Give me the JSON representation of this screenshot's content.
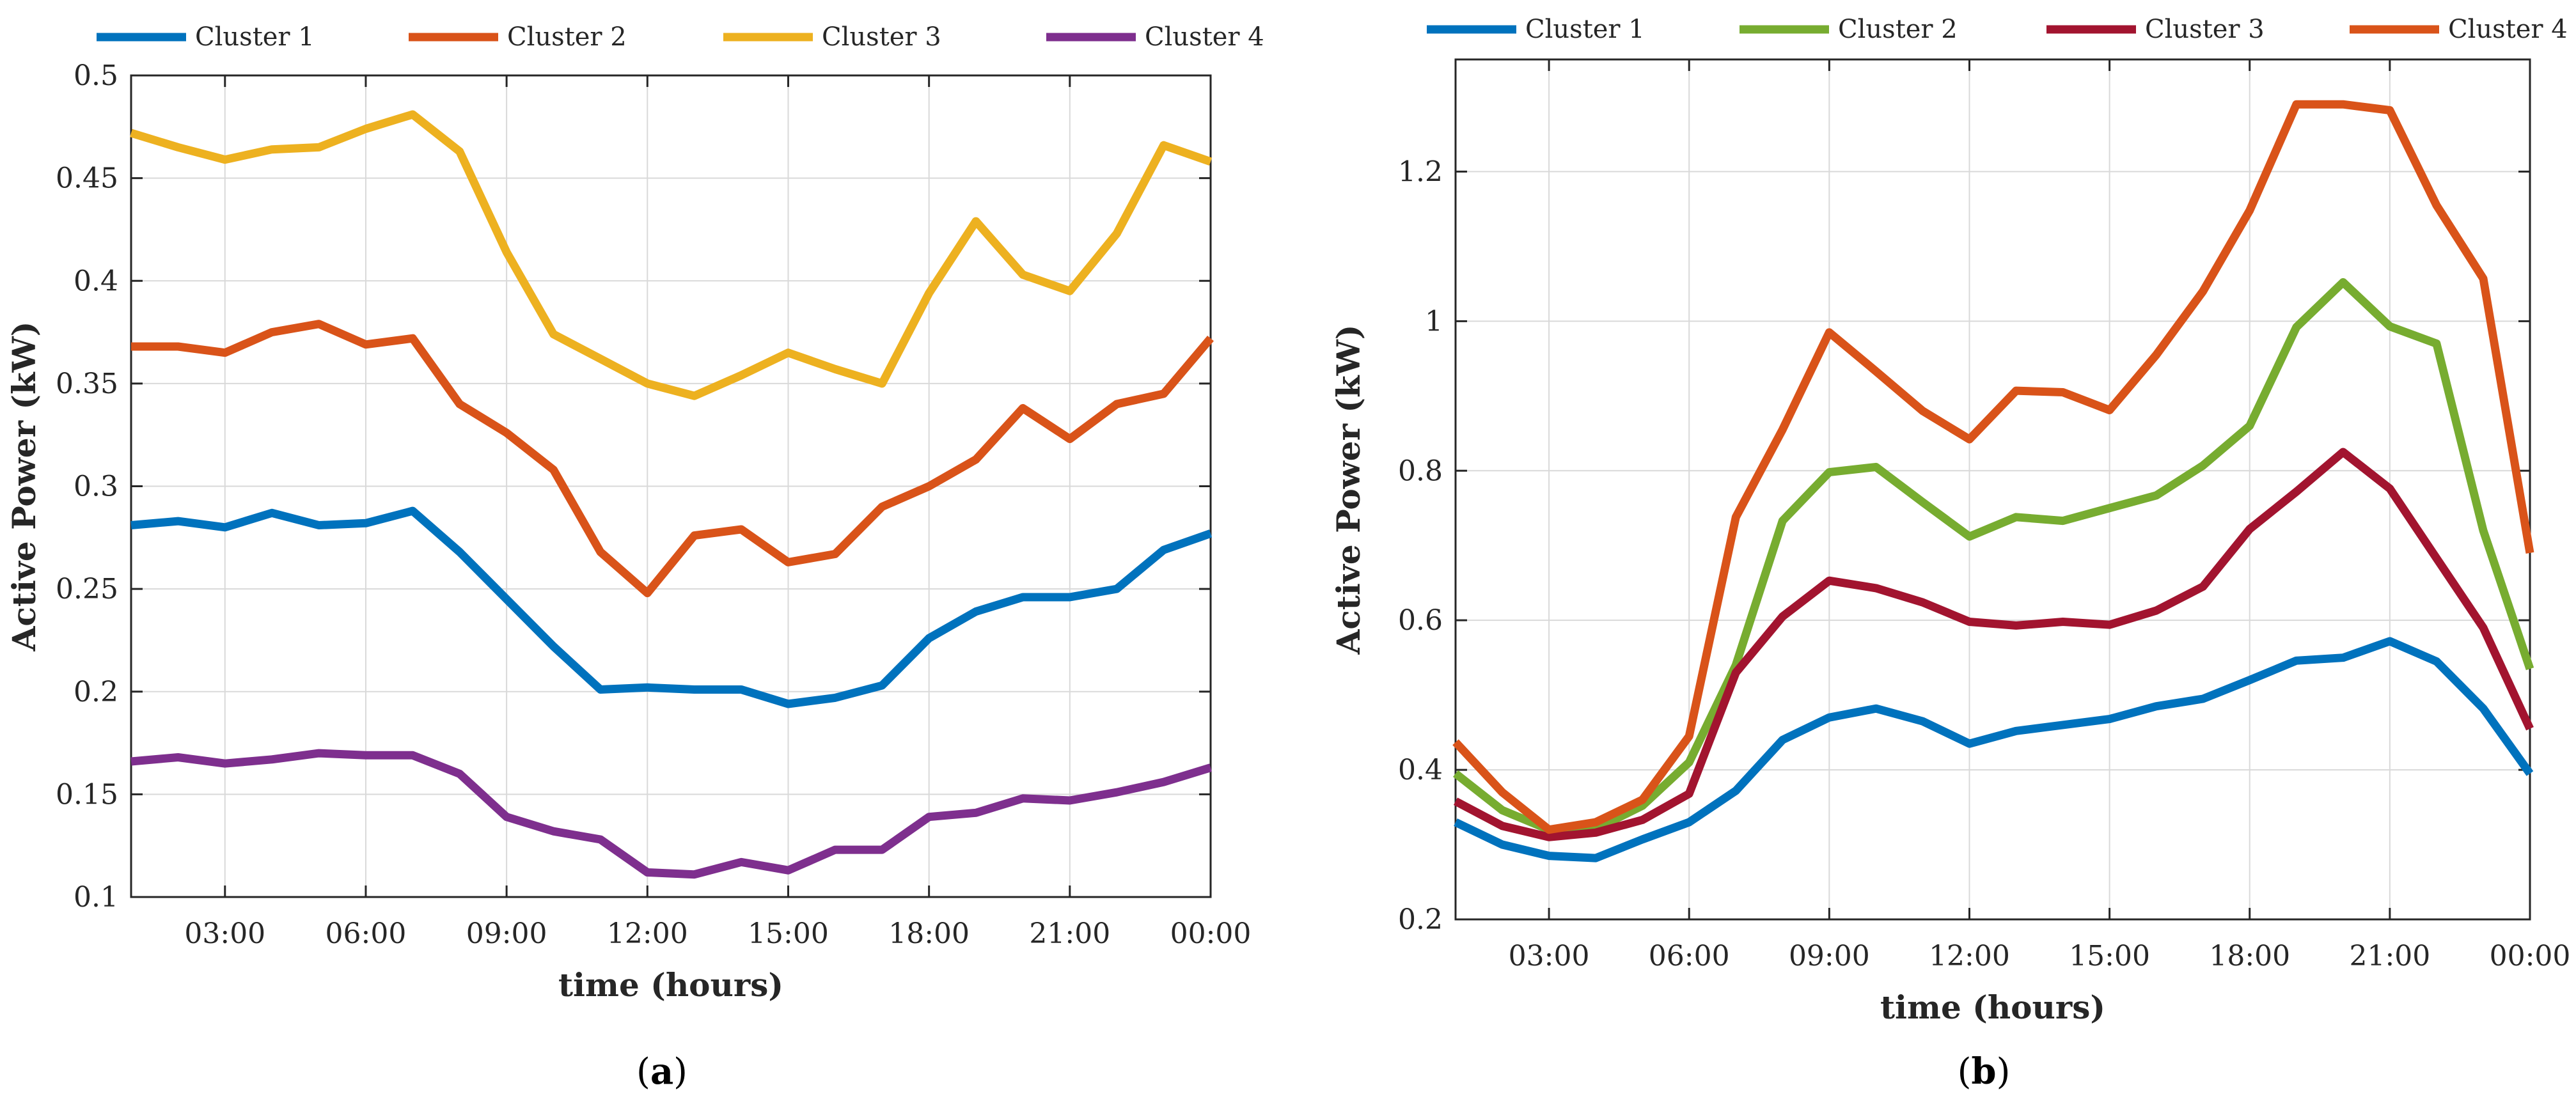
{
  "chart_data": [
    {
      "type": "line",
      "panel_label": "a",
      "xlabel": "time (hours)",
      "ylabel": "Active Power (kW)",
      "xlim": [
        1,
        24
      ],
      "ylim": [
        0.1,
        0.5
      ],
      "grid": true,
      "legend_position": "top",
      "x": [
        1,
        2,
        3,
        4,
        5,
        6,
        7,
        8,
        9,
        10,
        11,
        12,
        13,
        14,
        15,
        16,
        17,
        18,
        19,
        20,
        21,
        22,
        23,
        24
      ],
      "xticks": [
        3,
        6,
        9,
        12,
        15,
        18,
        21,
        24
      ],
      "xtick_labels": [
        "03:00",
        "06:00",
        "09:00",
        "12:00",
        "15:00",
        "18:00",
        "21:00",
        "00:00"
      ],
      "yticks": [
        0.1,
        0.15,
        0.2,
        0.25,
        0.3,
        0.35,
        0.4,
        0.45,
        0.5
      ],
      "ytick_labels": [
        "0.1",
        "0.15",
        "0.2",
        "0.25",
        "0.3",
        "0.35",
        "0.4",
        "0.45",
        "0.5"
      ],
      "series": [
        {
          "name": "Cluster 1",
          "color": "#0072BD",
          "values": [
            0.281,
            0.283,
            0.28,
            0.287,
            0.281,
            0.282,
            0.288,
            0.268,
            0.245,
            0.222,
            0.201,
            0.202,
            0.201,
            0.201,
            0.194,
            0.197,
            0.203,
            0.226,
            0.239,
            0.246,
            0.246,
            0.25,
            0.269,
            0.277
          ]
        },
        {
          "name": "Cluster 2",
          "color": "#D95319",
          "values": [
            0.368,
            0.368,
            0.365,
            0.375,
            0.379,
            0.369,
            0.372,
            0.34,
            0.326,
            0.308,
            0.268,
            0.248,
            0.276,
            0.279,
            0.263,
            0.267,
            0.29,
            0.3,
            0.313,
            0.338,
            0.323,
            0.34,
            0.345,
            0.372
          ]
        },
        {
          "name": "Cluster 3",
          "color": "#EDB120",
          "values": [
            0.472,
            0.465,
            0.459,
            0.464,
            0.465,
            0.474,
            0.481,
            0.463,
            0.414,
            0.374,
            0.362,
            0.35,
            0.344,
            0.354,
            0.365,
            0.357,
            0.35,
            0.394,
            0.429,
            0.403,
            0.395,
            0.423,
            0.466,
            0.458
          ]
        },
        {
          "name": "Cluster 4",
          "color": "#7E2F8E",
          "values": [
            0.166,
            0.168,
            0.165,
            0.167,
            0.17,
            0.169,
            0.169,
            0.16,
            0.139,
            0.132,
            0.128,
            0.112,
            0.111,
            0.117,
            0.113,
            0.123,
            0.123,
            0.139,
            0.141,
            0.148,
            0.147,
            0.151,
            0.156,
            0.163
          ]
        }
      ]
    },
    {
      "type": "line",
      "panel_label": "b",
      "xlabel": "time (hours)",
      "ylabel": "Active Power (kW)",
      "xlim": [
        1,
        24
      ],
      "ylim": [
        0.2,
        1.35
      ],
      "grid": true,
      "legend_position": "top",
      "x": [
        1,
        2,
        3,
        4,
        5,
        6,
        7,
        8,
        9,
        10,
        11,
        12,
        13,
        14,
        15,
        16,
        17,
        18,
        19,
        20,
        21,
        22,
        23,
        24
      ],
      "xticks": [
        3,
        6,
        9,
        12,
        15,
        18,
        21,
        24
      ],
      "xtick_labels": [
        "03:00",
        "06:00",
        "09:00",
        "12:00",
        "15:00",
        "18:00",
        "21:00",
        "00:00"
      ],
      "yticks": [
        0.2,
        0.4,
        0.6,
        0.8,
        1.0,
        1.2
      ],
      "ytick_labels": [
        "0.2",
        "0.4",
        "0.6",
        "0.8",
        "1",
        "1.2"
      ],
      "series": [
        {
          "name": "Cluster 1",
          "color": "#0072BD",
          "values": [
            0.33,
            0.3,
            0.285,
            0.282,
            0.307,
            0.33,
            0.372,
            0.44,
            0.47,
            0.482,
            0.465,
            0.435,
            0.452,
            0.46,
            0.468,
            0.485,
            0.495,
            0.52,
            0.546,
            0.55,
            0.572,
            0.545,
            0.482,
            0.395
          ]
        },
        {
          "name": "Cluster 2",
          "color": "#77AC30",
          "values": [
            0.395,
            0.346,
            0.32,
            0.321,
            0.352,
            0.41,
            0.54,
            0.733,
            0.798,
            0.805,
            0.758,
            0.712,
            0.738,
            0.733,
            0.75,
            0.767,
            0.807,
            0.86,
            0.992,
            1.052,
            0.993,
            0.97,
            0.72,
            0.535
          ]
        },
        {
          "name": "Cluster 3",
          "color": "#A2142F",
          "values": [
            0.358,
            0.325,
            0.31,
            0.316,
            0.333,
            0.368,
            0.53,
            0.605,
            0.653,
            0.643,
            0.624,
            0.598,
            0.593,
            0.598,
            0.594,
            0.613,
            0.645,
            0.722,
            0.772,
            0.825,
            0.776,
            0.683,
            0.59,
            0.455
          ]
        },
        {
          "name": "Cluster 4",
          "color": "#D95319",
          "values": [
            0.437,
            0.37,
            0.32,
            0.33,
            0.36,
            0.445,
            0.738,
            0.855,
            0.985,
            0.933,
            0.88,
            0.842,
            0.907,
            0.905,
            0.881,
            0.955,
            1.04,
            1.148,
            1.29,
            1.29,
            1.282,
            1.155,
            1.057,
            0.69
          ]
        }
      ]
    }
  ]
}
